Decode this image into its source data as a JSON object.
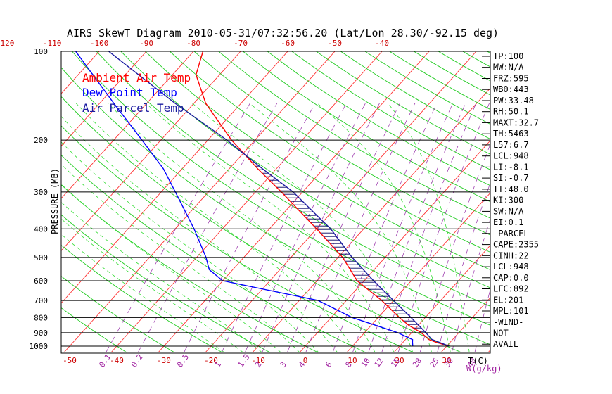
{
  "chart_data": {
    "type": "skewt",
    "title": "AIRS SkewT Diagram 2010-05-31/07:32:56.20 (Lat/Lon 28.30/-92.15 deg)",
    "ylabel": "PRESSURE (MB)",
    "x_unit_label": "T(C)",
    "mixing_unit_label": "W(g/kg)",
    "pressure_ticks": [
      100,
      200,
      300,
      400,
      500,
      600,
      700,
      800,
      900,
      1000
    ],
    "bottom_temp_ticks": [
      -50,
      -40,
      -30,
      -20,
      -10,
      0,
      10,
      20,
      30
    ],
    "bottom_temp_labels": [
      "-50",
      "-40",
      "-30",
      "-20",
      "-10",
      "0",
      "10",
      "20",
      "30"
    ],
    "top_temp_ticks": [
      -120,
      -110,
      -100,
      -90,
      -80,
      -70,
      -60,
      -50,
      -40
    ],
    "top_temp_labels": [
      "-120",
      "-110",
      "-100",
      "-90",
      "-80",
      "-70",
      "-60",
      "-50",
      "-40"
    ],
    "mixing_ratio_labels": [
      "0.1",
      "0.2",
      "0.5",
      "1",
      "1.5",
      "2",
      "3",
      "4",
      "6",
      "8",
      "10",
      "12",
      "15",
      "20",
      "25",
      "30",
      "40"
    ],
    "legend": [
      {
        "name": "Ambient Air Temp",
        "color": "#ff0000"
      },
      {
        "name": "Dew Point Temp",
        "color": "#0000ff"
      },
      {
        "name": "Air Parcel Temp",
        "color": "#1a1aa0"
      }
    ],
    "stats": [
      "TP:100",
      "MW:N/A",
      "FRZ:595",
      "WB0:443",
      "PW:33.48",
      "RH:50.1",
      "MAXT:32.7",
      "TH:5463",
      "L57:6.7",
      "LCL:948",
      "LI:-8.1",
      "SI:-0.7",
      "TT:48.0",
      "KI:300",
      "SW:N/A",
      "EI:0.1",
      "-PARCEL-",
      "CAPE:2355",
      "CINH:22",
      "LCL:948",
      "CAP:0.0",
      "LFC:892",
      "EL:201",
      "MPL:101",
      "-WIND-",
      "NOT",
      "AVAIL"
    ],
    "series": [
      {
        "name": "Ambient Air Temp",
        "points": [
          [
            1000,
            30.5
          ],
          [
            970,
            27.0
          ],
          [
            950,
            25.0
          ],
          [
            900,
            22.0
          ],
          [
            850,
            18.0
          ],
          [
            800,
            14.5
          ],
          [
            700,
            7.5
          ],
          [
            600,
            -1.5
          ],
          [
            500,
            -9.0
          ],
          [
            400,
            -20.0
          ],
          [
            300,
            -34.5
          ],
          [
            250,
            -44.0
          ],
          [
            200,
            -55.0
          ],
          [
            150,
            -67.5
          ],
          [
            120,
            -75.0
          ],
          [
            100,
            -78.0
          ]
        ]
      },
      {
        "name": "Dew Point Temp",
        "points": [
          [
            1000,
            22.8
          ],
          [
            970,
            22.0
          ],
          [
            950,
            21.5
          ],
          [
            900,
            17.0
          ],
          [
            850,
            11.0
          ],
          [
            800,
            4.5
          ],
          [
            700,
            -6.0
          ],
          [
            600,
            -30.0
          ],
          [
            550,
            -35.0
          ],
          [
            500,
            -38.0
          ],
          [
            400,
            -46.0
          ],
          [
            300,
            -57.0
          ],
          [
            250,
            -64.0
          ],
          [
            200,
            -74.0
          ],
          [
            150,
            -87.0
          ],
          [
            100,
            -105.0
          ]
        ]
      },
      {
        "name": "Air Parcel Temp",
        "points": [
          [
            1000,
            30.5
          ],
          [
            948,
            25.5
          ],
          [
            900,
            23.0
          ],
          [
            800,
            17.0
          ],
          [
            700,
            10.0
          ],
          [
            600,
            2.0
          ],
          [
            500,
            -7.0
          ],
          [
            400,
            -17.0
          ],
          [
            350,
            -24.0
          ],
          [
            300,
            -32.0
          ],
          [
            250,
            -43.0
          ],
          [
            200,
            -56.0
          ],
          [
            150,
            -74.0
          ],
          [
            100,
            -98.0
          ]
        ]
      }
    ],
    "cape_region": {
      "from_hpa": 892,
      "to_hpa": 201,
      "fill": "hatched"
    }
  }
}
